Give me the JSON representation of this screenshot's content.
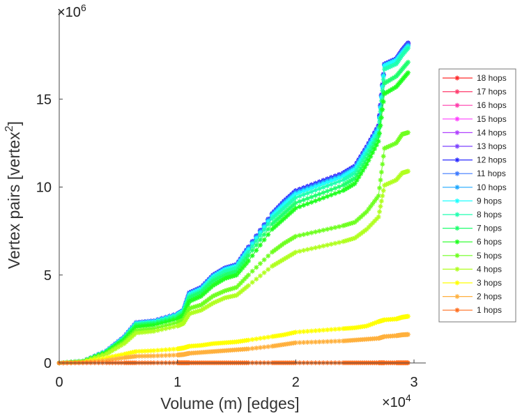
{
  "chart_data": {
    "type": "line",
    "title": "",
    "xlabel": "Volume (m) [edges]",
    "ylabel_main": "Vertex pairs [vertex",
    "ylabel_sup": "2",
    "ylabel_end": "]",
    "x_exponent_label": "×10",
    "x_exponent": "4",
    "y_exponent_label": "×10",
    "y_exponent": "6",
    "xlim": [
      0,
      3.1
    ],
    "ylim": [
      0,
      20
    ],
    "x_ticks": [
      0,
      1,
      2,
      3
    ],
    "x_tick_labels": [
      "0",
      "1",
      "2",
      "3"
    ],
    "y_ticks": [
      0,
      5,
      10,
      15
    ],
    "y_tick_labels": [
      "0",
      "5",
      "10",
      "15"
    ],
    "grid": false,
    "legend_position": "right-outside",
    "x": [
      0,
      0.2,
      0.4,
      0.55,
      0.65,
      0.8,
      1.0,
      1.05,
      1.1,
      1.2,
      1.3,
      1.4,
      1.5,
      1.6,
      1.8,
      1.9,
      2.0,
      2.2,
      2.4,
      2.5,
      2.6,
      2.7,
      2.75,
      2.85,
      2.9,
      2.95
    ],
    "series": [
      {
        "name": "18 hops",
        "color": "#ff2a2a",
        "values": [
          0,
          0.1,
          0.69,
          1.48,
          2.28,
          2.38,
          2.78,
          2.98,
          3.97,
          4.27,
          4.97,
          5.37,
          5.57,
          6.57,
          8.46,
          9.16,
          9.76,
          10.26,
          10.76,
          11.16,
          12.26,
          13.46,
          16.96,
          17.26,
          17.76,
          18.16
        ]
      },
      {
        "name": "17 hops",
        "color": "#ff3d6e",
        "values": [
          0,
          0.1,
          0.69,
          1.48,
          2.28,
          2.38,
          2.78,
          2.98,
          3.97,
          4.27,
          4.97,
          5.37,
          5.57,
          6.57,
          8.46,
          9.16,
          9.76,
          10.26,
          10.76,
          11.16,
          12.26,
          13.46,
          16.96,
          17.26,
          17.76,
          18.16
        ]
      },
      {
        "name": "16 hops",
        "color": "#ff3dac",
        "values": [
          0,
          0.1,
          0.69,
          1.48,
          2.28,
          2.38,
          2.78,
          2.98,
          3.97,
          4.27,
          4.97,
          5.37,
          5.57,
          6.57,
          8.46,
          9.16,
          9.76,
          10.26,
          10.76,
          11.16,
          12.26,
          13.46,
          16.96,
          17.26,
          17.76,
          18.16
        ]
      },
      {
        "name": "15 hops",
        "color": "#ff40ff",
        "values": [
          0,
          0.1,
          0.69,
          1.48,
          2.28,
          2.38,
          2.78,
          2.98,
          3.97,
          4.27,
          4.97,
          5.37,
          5.57,
          6.57,
          8.46,
          9.16,
          9.76,
          10.26,
          10.76,
          11.16,
          12.26,
          13.46,
          16.96,
          17.26,
          17.76,
          18.16
        ]
      },
      {
        "name": "14 hops",
        "color": "#b040ff",
        "values": [
          0,
          0.1,
          0.69,
          1.48,
          2.28,
          2.38,
          2.78,
          2.98,
          3.97,
          4.27,
          4.97,
          5.37,
          5.57,
          6.57,
          8.46,
          9.16,
          9.76,
          10.26,
          10.76,
          11.16,
          12.26,
          13.46,
          16.96,
          17.26,
          17.76,
          18.16
        ]
      },
      {
        "name": "13 hops",
        "color": "#7a40ff",
        "values": [
          0,
          0.1,
          0.69,
          1.49,
          2.29,
          2.39,
          2.79,
          2.99,
          3.98,
          4.28,
          4.98,
          5.38,
          5.58,
          6.58,
          8.48,
          9.18,
          9.78,
          10.28,
          10.78,
          11.18,
          12.28,
          13.48,
          16.98,
          17.28,
          17.78,
          18.18
        ]
      },
      {
        "name": "12 hops",
        "color": "#2a2aff",
        "values": [
          0,
          0.1,
          0.7,
          1.5,
          2.3,
          2.4,
          2.8,
          3.0,
          4.0,
          4.3,
          5.0,
          5.4,
          5.6,
          6.6,
          8.5,
          9.2,
          9.8,
          10.3,
          10.8,
          11.2,
          12.3,
          13.5,
          17.0,
          17.3,
          17.8,
          18.2
        ]
      },
      {
        "name": "11 hops",
        "color": "#3d7aff",
        "values": [
          0,
          0.1,
          0.69,
          1.48,
          2.28,
          2.38,
          2.78,
          2.98,
          3.96,
          4.26,
          4.96,
          5.36,
          5.56,
          6.55,
          8.44,
          9.12,
          9.72,
          10.22,
          10.72,
          11.12,
          12.22,
          13.42,
          16.95,
          17.25,
          17.72,
          18.12
        ]
      },
      {
        "name": "10 hops",
        "color": "#1fa8ff",
        "values": [
          0,
          0.1,
          0.69,
          1.47,
          2.27,
          2.37,
          2.77,
          2.97,
          3.93,
          4.23,
          4.93,
          5.33,
          5.53,
          6.5,
          8.4,
          9.06,
          9.66,
          10.16,
          10.66,
          11.06,
          12.16,
          13.36,
          16.92,
          17.22,
          17.66,
          18.06
        ]
      },
      {
        "name": "9 hops",
        "color": "#1fffff",
        "values": [
          0,
          0.1,
          0.68,
          1.45,
          2.25,
          2.35,
          2.75,
          2.95,
          3.9,
          4.2,
          4.9,
          5.3,
          5.5,
          6.45,
          8.35,
          9.0,
          9.6,
          10.1,
          10.6,
          11.0,
          12.1,
          13.3,
          16.9,
          17.2,
          17.6,
          18.0
        ]
      },
      {
        "name": "8 hops",
        "color": "#1fffb0",
        "values": [
          0,
          0.1,
          0.66,
          1.42,
          2.2,
          2.3,
          2.7,
          2.9,
          3.8,
          4.1,
          4.8,
          5.2,
          5.4,
          6.3,
          8.2,
          8.8,
          9.4,
          9.9,
          10.4,
          10.8,
          11.9,
          13.1,
          16.7,
          17.0,
          17.5,
          17.9
        ]
      },
      {
        "name": "7 hops",
        "color": "#1fff6e",
        "values": [
          0,
          0.1,
          0.64,
          1.38,
          2.15,
          2.25,
          2.6,
          2.8,
          3.7,
          4.0,
          4.65,
          5.0,
          5.2,
          6.1,
          7.9,
          8.5,
          9.1,
          9.6,
          10.1,
          10.5,
          11.6,
          12.9,
          15.9,
          16.3,
          16.7,
          17.1
        ]
      },
      {
        "name": "6 hops",
        "color": "#1fff1f",
        "values": [
          0,
          0.1,
          0.62,
          1.33,
          2.05,
          2.15,
          2.5,
          2.7,
          3.5,
          3.8,
          4.4,
          4.8,
          5.0,
          5.8,
          7.6,
          8.2,
          8.8,
          9.3,
          9.8,
          10.2,
          11.3,
          12.6,
          15.3,
          15.7,
          16.1,
          16.5
        ]
      },
      {
        "name": "5 hops",
        "color": "#6eff1f",
        "values": [
          0,
          0.08,
          0.55,
          1.2,
          1.85,
          1.95,
          2.3,
          2.45,
          3.1,
          3.3,
          3.8,
          4.1,
          4.3,
          5.0,
          6.3,
          6.8,
          7.2,
          7.5,
          7.8,
          8.0,
          8.6,
          9.5,
          12.2,
          12.5,
          13.0,
          13.1
        ]
      },
      {
        "name": "4 hops",
        "color": "#b0ff1f",
        "values": [
          0,
          0.07,
          0.5,
          1.1,
          1.7,
          1.8,
          2.1,
          2.25,
          2.8,
          3.0,
          3.4,
          3.7,
          3.85,
          4.4,
          5.5,
          5.9,
          6.3,
          6.6,
          6.9,
          7.1,
          7.6,
          8.3,
          10.1,
          10.4,
          10.8,
          10.9
        ]
      },
      {
        "name": "3 hops",
        "color": "#ffff00",
        "values": [
          0,
          0.05,
          0.3,
          0.5,
          0.65,
          0.7,
          0.8,
          0.85,
          0.95,
          1.0,
          1.1,
          1.15,
          1.2,
          1.3,
          1.5,
          1.6,
          1.75,
          1.85,
          1.95,
          2.0,
          2.1,
          2.35,
          2.45,
          2.5,
          2.6,
          2.65
        ]
      },
      {
        "name": "2 hops",
        "color": "#ffb03d",
        "values": [
          0,
          0.03,
          0.15,
          0.3,
          0.38,
          0.4,
          0.45,
          0.48,
          0.55,
          0.6,
          0.65,
          0.7,
          0.75,
          0.8,
          0.95,
          1.05,
          1.15,
          1.2,
          1.25,
          1.3,
          1.35,
          1.4,
          1.5,
          1.55,
          1.6,
          1.62
        ]
      },
      {
        "name": "1 hops",
        "color": "#ff6e1f",
        "values": [
          0,
          0.01,
          0.01,
          0.01,
          0.01,
          0.01,
          0.01,
          0.01,
          0.01,
          0.01,
          0.01,
          0.01,
          0.01,
          0.01,
          0.01,
          0.01,
          0.01,
          0.01,
          0.01,
          0.01,
          0.01,
          0.01,
          0.01,
          0.01,
          0.01,
          0.01
        ]
      }
    ]
  }
}
